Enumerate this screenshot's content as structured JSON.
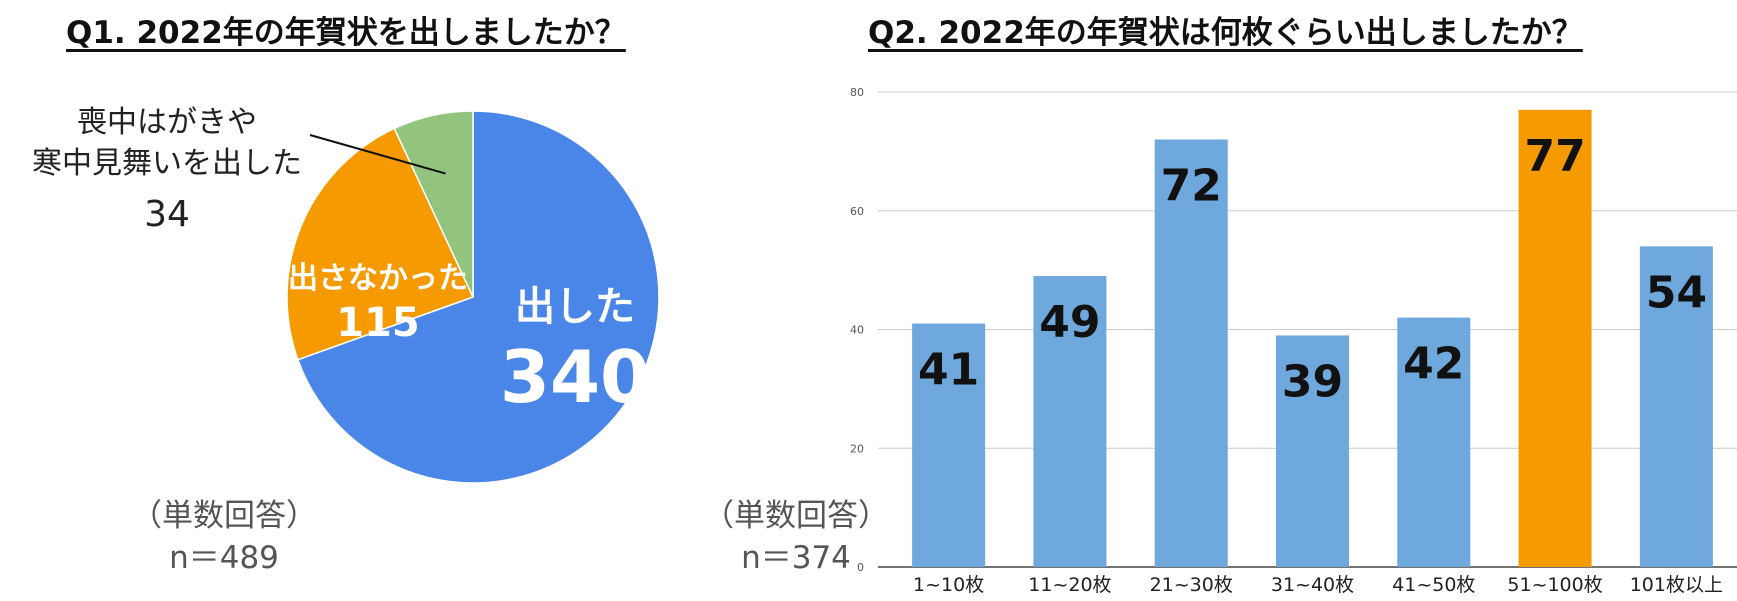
{
  "q1": {
    "title": "Q1. 2022年の年賀状を出しましたか？",
    "note_label": "（単数回答）",
    "n_label": "n＝489"
  },
  "q2": {
    "title": "Q2. 2022年の年賀状は何枚ぐらい出しましたか？",
    "note_label": "（単数回答）",
    "n_label": "n＝374"
  },
  "chart_data": [
    {
      "type": "pie",
      "slices": [
        {
          "label": "出した",
          "value": 340,
          "color": "#4a86e8"
        },
        {
          "label": "出さなかった",
          "value": 115,
          "color": "#f59a00"
        },
        {
          "label_lines": [
            "喪中はがきや",
            "寒中見舞いを出した"
          ],
          "value": 34,
          "color": "#93c47d"
        }
      ]
    },
    {
      "type": "bar",
      "categories": [
        "1~10枚",
        "11~20枚",
        "21~30枚",
        "31~40枚",
        "41~50枚",
        "51~100枚",
        "101枚以上"
      ],
      "values": [
        41,
        49,
        72,
        39,
        42,
        77,
        54
      ],
      "colors": [
        "#6fa8dc",
        "#6fa8dc",
        "#6fa8dc",
        "#6fa8dc",
        "#6fa8dc",
        "#f59a00",
        "#6fa8dc"
      ],
      "ylim": [
        0,
        80
      ],
      "yticks": [
        0,
        20,
        40,
        60,
        80
      ],
      "grid": true
    }
  ]
}
